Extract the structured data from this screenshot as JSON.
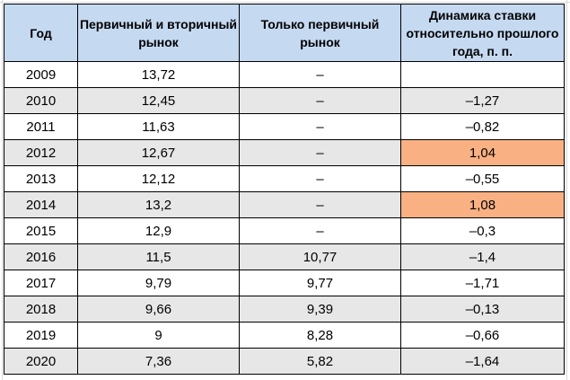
{
  "table": {
    "headers": {
      "year": "Год",
      "both_markets": "Первичный и вторичный рынок",
      "primary_only": "Только первичный рынок",
      "rate_change": "Динамика ставки относительно прошлого года, п. п."
    },
    "rows": [
      {
        "year": "2009",
        "both": "13,72",
        "primary": "–",
        "delta": ""
      },
      {
        "year": "2010",
        "both": "12,45",
        "primary": "–",
        "delta": "–1,27"
      },
      {
        "year": "2011",
        "both": "11,63",
        "primary": "–",
        "delta": "–0,82"
      },
      {
        "year": "2012",
        "both": "12,67",
        "primary": "–",
        "delta": "1,04"
      },
      {
        "year": "2013",
        "both": "12,12",
        "primary": "–",
        "delta": "–0,55"
      },
      {
        "year": "2014",
        "both": "13,2",
        "primary": "–",
        "delta": "1,08"
      },
      {
        "year": "2015",
        "both": "12,9",
        "primary": "–",
        "delta": "–0,3"
      },
      {
        "year": "2016",
        "both": "11,5",
        "primary": "10,77",
        "delta": "–1,4"
      },
      {
        "year": "2017",
        "both": "9,79",
        "primary": "9,77",
        "delta": "–1,71"
      },
      {
        "year": "2018",
        "both": "9,66",
        "primary": "9,39",
        "delta": "–0,13"
      },
      {
        "year": "2019",
        "both": "9",
        "primary": "8,28",
        "delta": "–0,66"
      },
      {
        "year": "2020",
        "both": "7,36",
        "primary": "5,82",
        "delta": "–1,64"
      }
    ]
  },
  "colors": {
    "header_background": "#c5d9f1",
    "shaded_row_background": "#e7e7e7",
    "positive_change_highlight": "#f9b183",
    "border": "#000000"
  }
}
